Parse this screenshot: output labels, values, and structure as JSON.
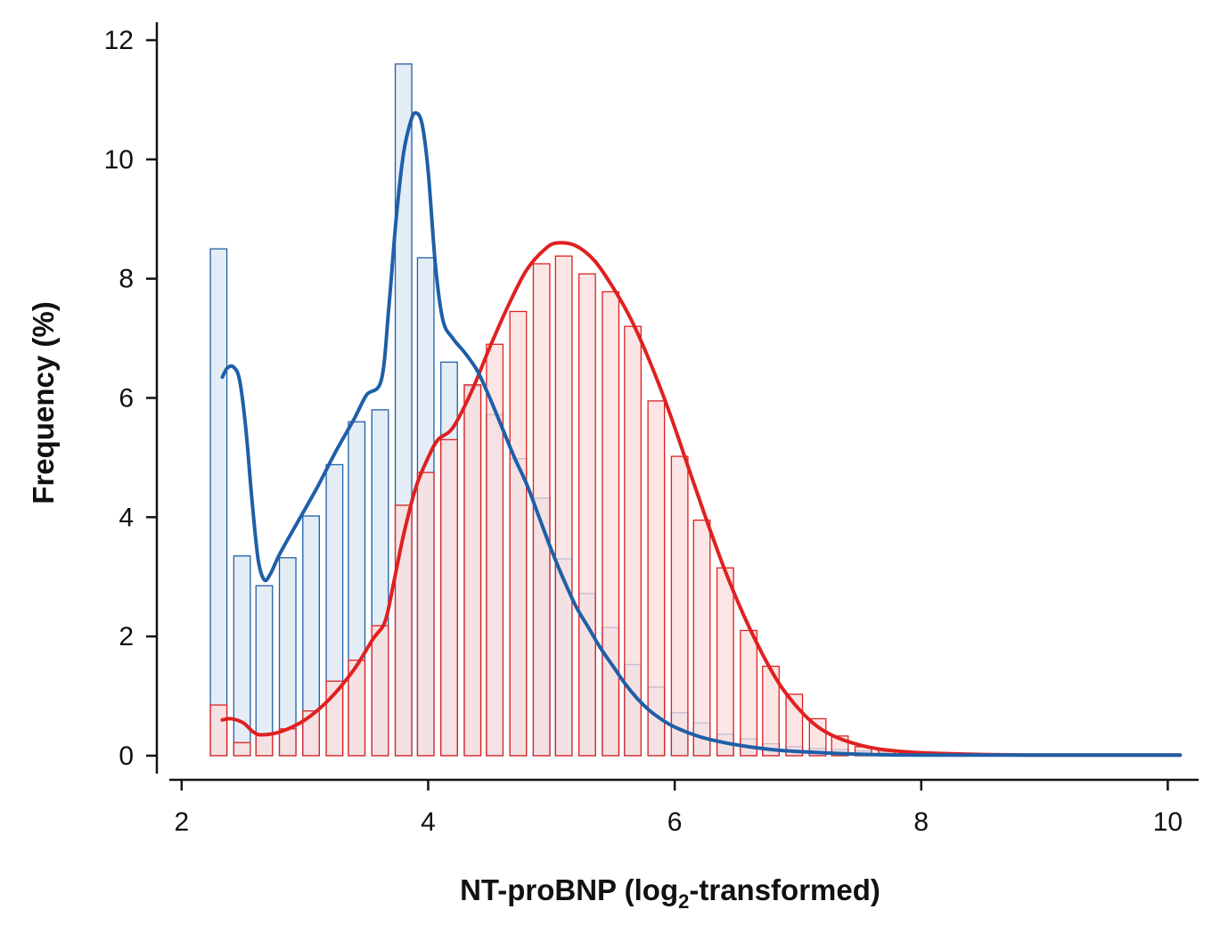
{
  "chart_data": {
    "type": "bar",
    "title": "",
    "xlabel": "NT-proBNP (log",
    "xlabel_subscript": "2",
    "xlabel_suffix": "-transformed)",
    "ylabel": "Frequency (%)",
    "xlim": [
      1.9,
      10.25
    ],
    "ylim": [
      -0.3,
      12.3
    ],
    "x_ticks": [
      2,
      4,
      6,
      8,
      10
    ],
    "y_ticks": [
      0,
      2,
      4,
      6,
      8,
      10,
      12
    ],
    "grid": false,
    "bin_width": 0.186,
    "series": [
      {
        "color": "#1f5fa8",
        "fill": "#e4edf6",
        "bins": [
          [
            2.3,
            8.5
          ],
          [
            2.49,
            3.35
          ],
          [
            2.67,
            2.85
          ],
          [
            2.86,
            3.32
          ],
          [
            3.05,
            4.02
          ],
          [
            3.24,
            4.88
          ],
          [
            3.42,
            5.6
          ],
          [
            3.61,
            5.8
          ],
          [
            3.8,
            11.6
          ],
          [
            3.98,
            8.35
          ],
          [
            4.17,
            6.6
          ],
          [
            4.36,
            6.2
          ],
          [
            4.54,
            5.72
          ],
          [
            4.73,
            4.98
          ],
          [
            4.92,
            4.32
          ],
          [
            5.1,
            3.3
          ],
          [
            5.29,
            2.72
          ],
          [
            5.48,
            2.15
          ],
          [
            5.66,
            1.53
          ],
          [
            5.85,
            1.15
          ],
          [
            6.04,
            0.72
          ],
          [
            6.22,
            0.55
          ],
          [
            6.41,
            0.36
          ],
          [
            6.6,
            0.28
          ],
          [
            6.78,
            0.2
          ],
          [
            6.97,
            0.15
          ],
          [
            7.16,
            0.12
          ],
          [
            7.34,
            0.1
          ],
          [
            7.53,
            0.08
          ],
          [
            7.72,
            0.06
          ],
          [
            7.9,
            0.05
          ],
          [
            8.09,
            0.04
          ],
          [
            8.28,
            0.03
          ],
          [
            8.46,
            0.02
          ]
        ],
        "curve": [
          [
            2.33,
            6.35
          ],
          [
            2.37,
            6.5
          ],
          [
            2.42,
            6.52
          ],
          [
            2.47,
            6.3
          ],
          [
            2.52,
            5.5
          ],
          [
            2.57,
            4.3
          ],
          [
            2.62,
            3.3
          ],
          [
            2.67,
            2.95
          ],
          [
            2.72,
            3.05
          ],
          [
            2.8,
            3.4
          ],
          [
            2.95,
            3.95
          ],
          [
            3.1,
            4.5
          ],
          [
            3.25,
            5.1
          ],
          [
            3.4,
            5.65
          ],
          [
            3.5,
            6.05
          ],
          [
            3.62,
            6.3
          ],
          [
            3.68,
            7.5
          ],
          [
            3.74,
            9.0
          ],
          [
            3.8,
            10.1
          ],
          [
            3.86,
            10.65
          ],
          [
            3.9,
            10.78
          ],
          [
            3.95,
            10.6
          ],
          [
            4.0,
            9.8
          ],
          [
            4.06,
            8.2
          ],
          [
            4.12,
            7.3
          ],
          [
            4.2,
            7.0
          ],
          [
            4.3,
            6.75
          ],
          [
            4.4,
            6.45
          ],
          [
            4.5,
            6.0
          ],
          [
            4.6,
            5.5
          ],
          [
            4.7,
            5.0
          ],
          [
            4.8,
            4.55
          ],
          [
            4.9,
            4.0
          ],
          [
            5.0,
            3.45
          ],
          [
            5.1,
            2.95
          ],
          [
            5.2,
            2.5
          ],
          [
            5.3,
            2.15
          ],
          [
            5.4,
            1.8
          ],
          [
            5.5,
            1.5
          ],
          [
            5.6,
            1.2
          ],
          [
            5.7,
            0.95
          ],
          [
            5.8,
            0.75
          ],
          [
            5.9,
            0.6
          ],
          [
            6.0,
            0.48
          ],
          [
            6.2,
            0.32
          ],
          [
            6.4,
            0.22
          ],
          [
            6.6,
            0.15
          ],
          [
            6.8,
            0.1
          ],
          [
            7.0,
            0.07
          ],
          [
            7.3,
            0.04
          ],
          [
            7.6,
            0.02
          ],
          [
            8.0,
            0.01
          ],
          [
            9.0,
            0.01
          ],
          [
            10.1,
            0.01
          ]
        ]
      },
      {
        "color": "#e02020",
        "fill": "#f9dcdc",
        "bins": [
          [
            2.3,
            0.85
          ],
          [
            2.49,
            0.22
          ],
          [
            2.67,
            0.35
          ],
          [
            2.86,
            0.45
          ],
          [
            3.05,
            0.75
          ],
          [
            3.24,
            1.25
          ],
          [
            3.42,
            1.6
          ],
          [
            3.61,
            2.18
          ],
          [
            3.8,
            4.2
          ],
          [
            3.98,
            4.75
          ],
          [
            4.17,
            5.3
          ],
          [
            4.36,
            6.22
          ],
          [
            4.54,
            6.9
          ],
          [
            4.73,
            7.45
          ],
          [
            4.92,
            8.25
          ],
          [
            5.1,
            8.38
          ],
          [
            5.29,
            8.08
          ],
          [
            5.48,
            7.78
          ],
          [
            5.66,
            7.2
          ],
          [
            5.85,
            5.95
          ],
          [
            6.04,
            5.02
          ],
          [
            6.22,
            3.95
          ],
          [
            6.41,
            3.15
          ],
          [
            6.6,
            2.1
          ],
          [
            6.78,
            1.5
          ],
          [
            6.97,
            1.03
          ],
          [
            7.16,
            0.62
          ],
          [
            7.34,
            0.33
          ],
          [
            7.53,
            0.15
          ],
          [
            7.72,
            0.1
          ],
          [
            7.9,
            0.06
          ],
          [
            8.09,
            0.04
          ]
        ],
        "curve": [
          [
            2.33,
            0.6
          ],
          [
            2.4,
            0.62
          ],
          [
            2.5,
            0.55
          ],
          [
            2.58,
            0.4
          ],
          [
            2.65,
            0.35
          ],
          [
            2.8,
            0.4
          ],
          [
            3.0,
            0.6
          ],
          [
            3.2,
            0.95
          ],
          [
            3.4,
            1.45
          ],
          [
            3.55,
            1.95
          ],
          [
            3.65,
            2.25
          ],
          [
            3.72,
            2.9
          ],
          [
            3.8,
            3.7
          ],
          [
            3.9,
            4.5
          ],
          [
            4.0,
            5.0
          ],
          [
            4.08,
            5.3
          ],
          [
            4.2,
            5.5
          ],
          [
            4.35,
            6.1
          ],
          [
            4.5,
            6.85
          ],
          [
            4.65,
            7.55
          ],
          [
            4.8,
            8.15
          ],
          [
            4.95,
            8.5
          ],
          [
            5.05,
            8.6
          ],
          [
            5.2,
            8.55
          ],
          [
            5.35,
            8.3
          ],
          [
            5.5,
            7.85
          ],
          [
            5.65,
            7.3
          ],
          [
            5.8,
            6.6
          ],
          [
            5.95,
            5.8
          ],
          [
            6.1,
            4.9
          ],
          [
            6.25,
            4.0
          ],
          [
            6.4,
            3.15
          ],
          [
            6.55,
            2.4
          ],
          [
            6.7,
            1.75
          ],
          [
            6.85,
            1.2
          ],
          [
            7.0,
            0.8
          ],
          [
            7.15,
            0.5
          ],
          [
            7.3,
            0.32
          ],
          [
            7.5,
            0.18
          ],
          [
            7.7,
            0.1
          ],
          [
            8.0,
            0.05
          ],
          [
            8.5,
            0.02
          ],
          [
            9.0,
            0.01
          ],
          [
            10.1,
            0.01
          ]
        ]
      }
    ]
  }
}
